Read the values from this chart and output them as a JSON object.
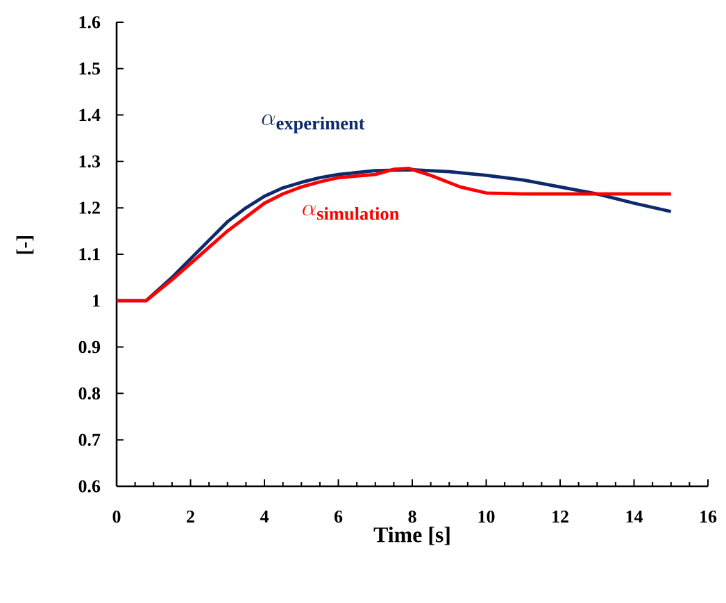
{
  "chart_data": {
    "type": "line",
    "xlabel": "Time [s]",
    "ylabel": "[-]",
    "xlim": [
      0,
      16
    ],
    "xticks": [
      0,
      2,
      4,
      6,
      8,
      10,
      12,
      14,
      16
    ],
    "ylim": [
      0.6,
      1.6
    ],
    "yticks": [
      0.6,
      0.7,
      0.8,
      0.9,
      1,
      1.1,
      1.2,
      1.3,
      1.4,
      1.5,
      1.6
    ],
    "series": [
      {
        "name": "\\alpha_{\\mathbf{experiment}}",
        "color": "#0d2a6b",
        "x": [
          0,
          0.8,
          1.5,
          2,
          2.5,
          3,
          3.5,
          4,
          4.5,
          5,
          5.5,
          6,
          7,
          8,
          9,
          10,
          11,
          12,
          13,
          14,
          15
        ],
        "values": [
          1,
          1,
          1.05,
          1.09,
          1.13,
          1.17,
          1.2,
          1.225,
          1.243,
          1.255,
          1.265,
          1.272,
          1.28,
          1.282,
          1.278,
          1.27,
          1.26,
          1.245,
          1.23,
          1.21,
          1.192
        ]
      },
      {
        "name": "\\alpha_{\\mathbf{simulation}}",
        "color": "#ff0000",
        "x": [
          0,
          0.8,
          1.5,
          2,
          2.5,
          3,
          3.5,
          4,
          4.5,
          5,
          5.5,
          6,
          7,
          7.5,
          7.9,
          8.5,
          9.3,
          10,
          11,
          12,
          13,
          14,
          15
        ],
        "values": [
          1,
          1,
          1.045,
          1.08,
          1.115,
          1.15,
          1.18,
          1.21,
          1.23,
          1.245,
          1.256,
          1.265,
          1.272,
          1.283,
          1.285,
          1.27,
          1.245,
          1.232,
          1.23,
          1.23,
          1.23,
          1.23,
          1.23
        ]
      }
    ],
    "grid": false,
    "marker": "none",
    "line_style": "solid"
  }
}
